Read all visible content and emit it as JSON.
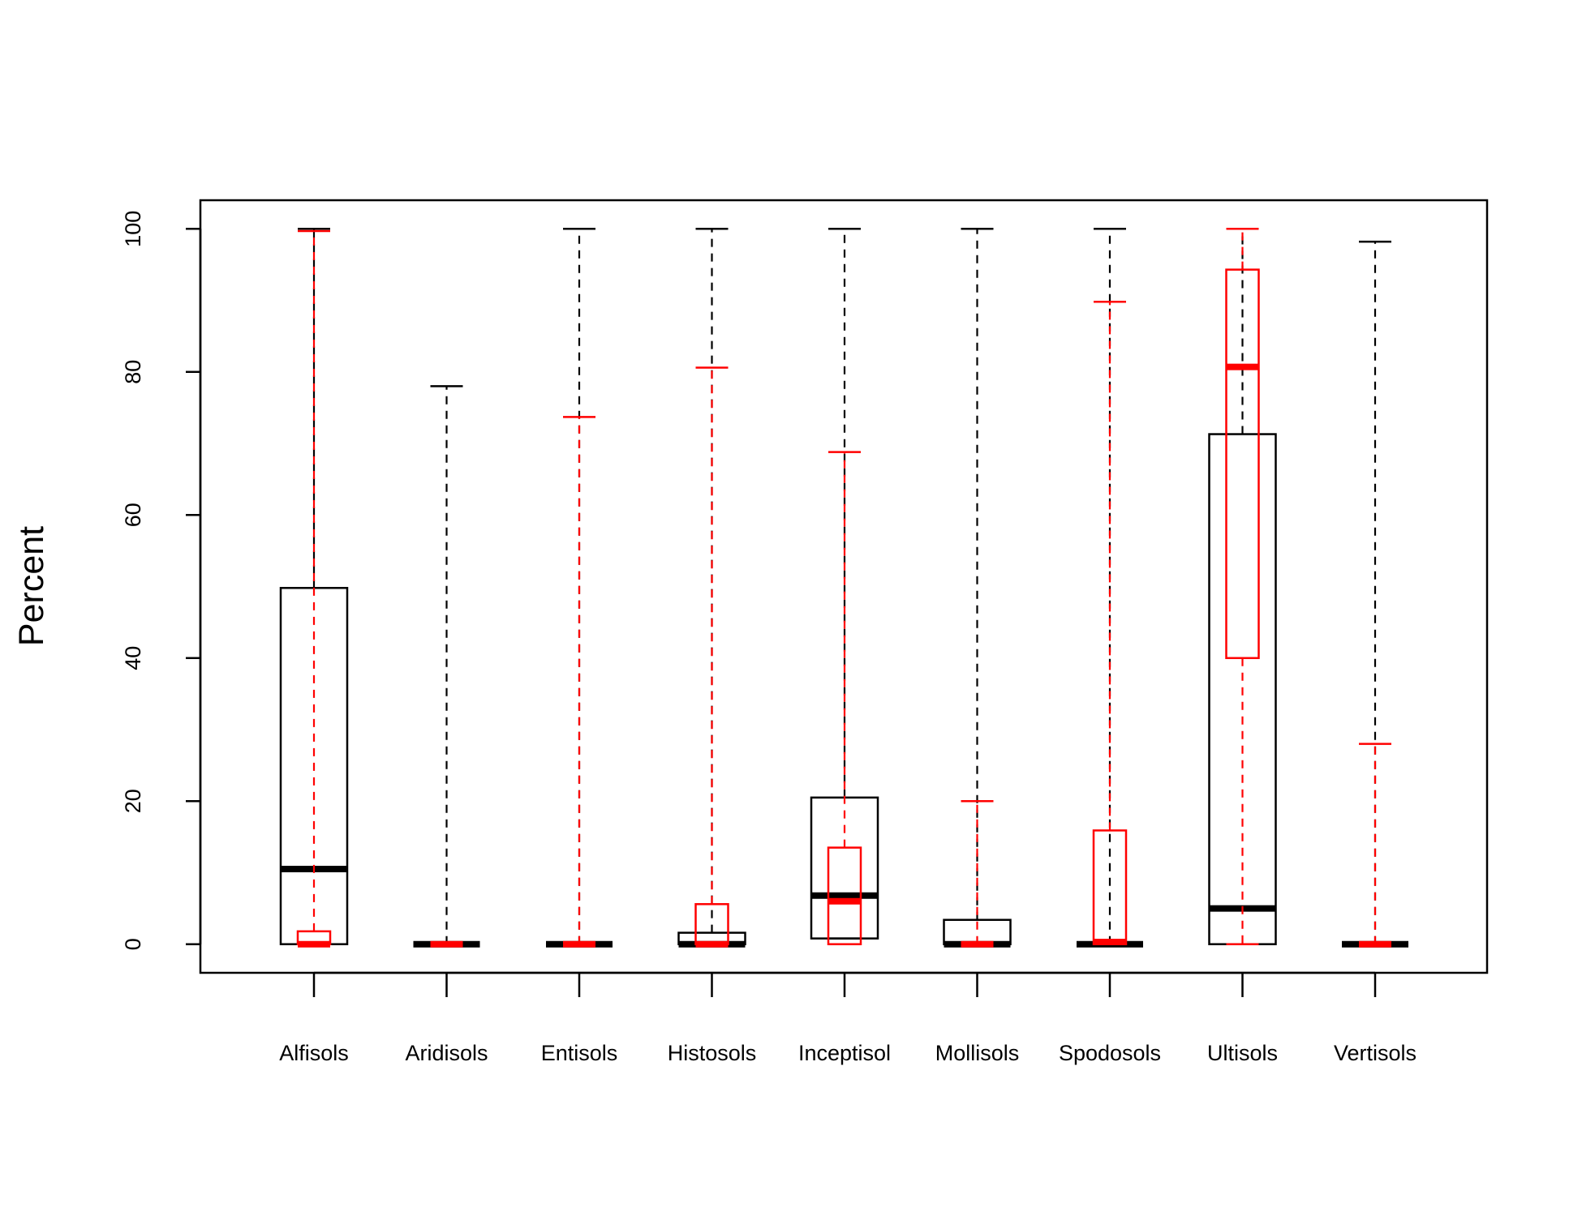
{
  "chart_data": {
    "type": "boxplot",
    "title": "",
    "xlabel": "",
    "ylabel": "Percent",
    "ylim": [
      -4,
      104
    ],
    "yticks": [
      0,
      20,
      40,
      60,
      80,
      100
    ],
    "ytick_labels": [
      "0",
      "20",
      "40",
      "60",
      "80",
      "100"
    ],
    "grid": false,
    "categories": [
      "Alfisols",
      "Aridisols",
      "Entisols",
      "Histosols",
      "Inceptisol",
      "Mollisols",
      "Spodosols",
      "Ultisols",
      "Vertisols"
    ],
    "series": [
      {
        "name": "black",
        "color": "#000000",
        "boxes": [
          {
            "min": 0,
            "q1": 0,
            "median": 10.5,
            "q3": 49.8,
            "max": 100
          },
          {
            "min": 0,
            "q1": 0,
            "median": 0,
            "q3": 0,
            "max": 78
          },
          {
            "min": 0,
            "q1": 0,
            "median": 0,
            "q3": 0,
            "max": 100
          },
          {
            "min": 0,
            "q1": 0,
            "median": 0,
            "q3": 1.6,
            "max": 100
          },
          {
            "min": 0.8,
            "q1": 0.8,
            "median": 6.8,
            "q3": 20.5,
            "max": 100
          },
          {
            "min": 0,
            "q1": 0,
            "median": 0,
            "q3": 3.4,
            "max": 100
          },
          {
            "min": 0,
            "q1": 0,
            "median": 0,
            "q3": 0,
            "max": 100
          },
          {
            "min": 0,
            "q1": 0,
            "median": 5,
            "q3": 71.3,
            "max": 100
          },
          {
            "min": 0,
            "q1": 0,
            "median": 0,
            "q3": 0,
            "max": 98.2
          }
        ]
      },
      {
        "name": "red",
        "color": "#ff0000",
        "boxes": [
          {
            "min": 0,
            "q1": 0,
            "median": 0,
            "q3": 1.8,
            "max": 99.7
          },
          {
            "min": 0,
            "q1": 0,
            "median": 0,
            "q3": 0,
            "max": 0
          },
          {
            "min": 0,
            "q1": 0,
            "median": 0,
            "q3": 0,
            "max": 73.7
          },
          {
            "min": 0,
            "q1": 0,
            "median": 0,
            "q3": 5.6,
            "max": 80.6
          },
          {
            "min": 0,
            "q1": 0,
            "median": 6,
            "q3": 13.5,
            "max": 68.8
          },
          {
            "min": 0,
            "q1": 0,
            "median": 0,
            "q3": 0,
            "max": 20
          },
          {
            "min": 0,
            "q1": 0,
            "median": 0.3,
            "q3": 15.9,
            "max": 89.8
          },
          {
            "min": 0,
            "q1": 40,
            "median": 80.7,
            "q3": 94.3,
            "max": 100
          },
          {
            "min": 0,
            "q1": 0,
            "median": 0,
            "q3": 0,
            "max": 28
          }
        ]
      }
    ]
  }
}
